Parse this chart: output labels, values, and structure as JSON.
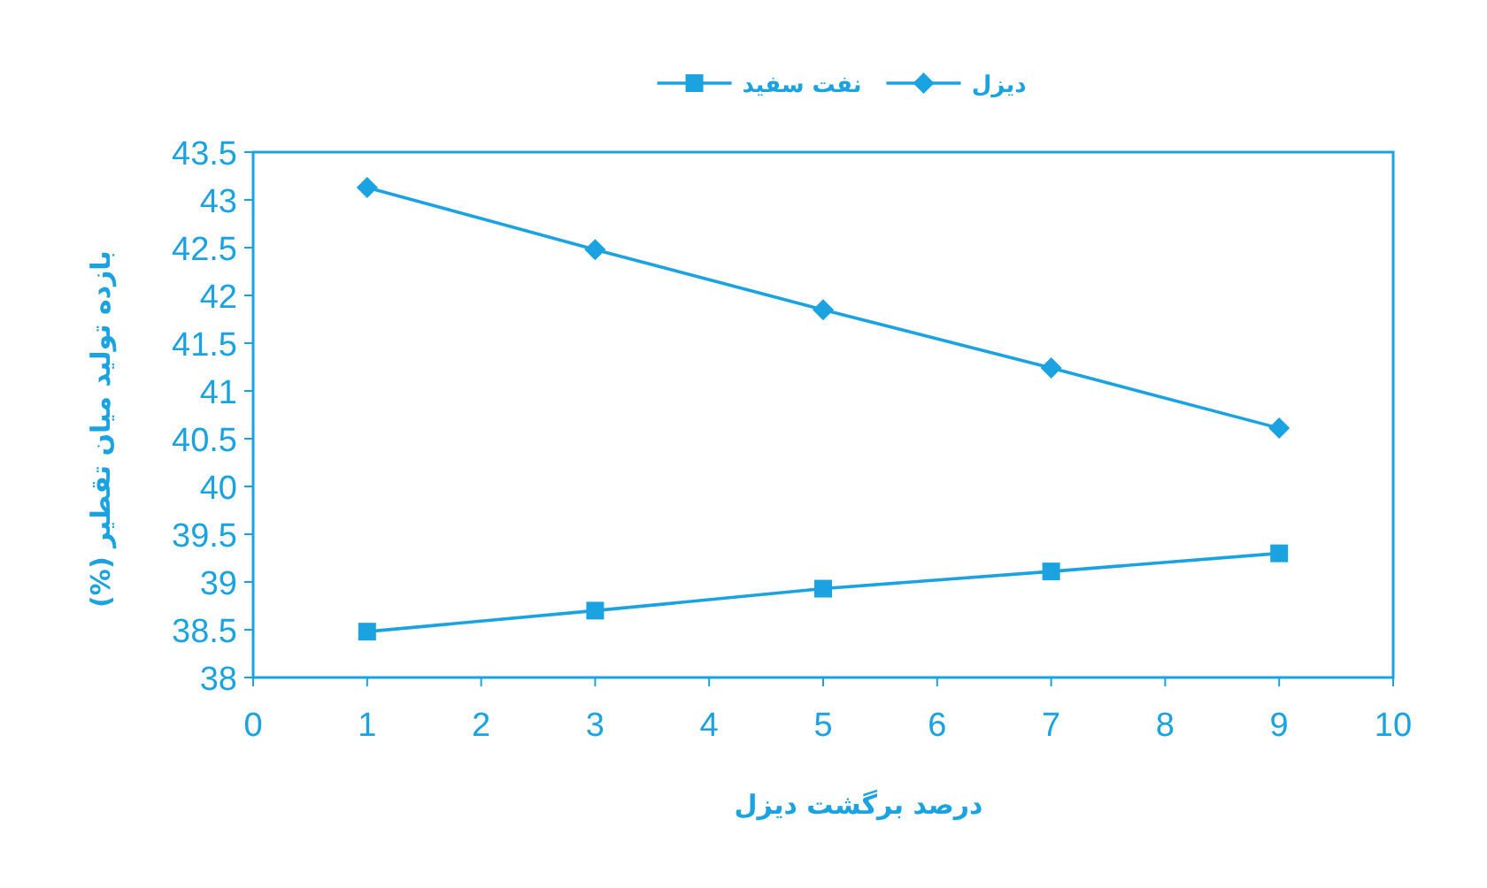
{
  "chart_data": {
    "type": "line",
    "xlabel": "درصد برگشت دیزل",
    "ylabel": "بازده تولید میان تقطیر (%)",
    "x": [
      1,
      3,
      5,
      7,
      9
    ],
    "series": [
      {
        "name": "دیزل",
        "color": "#1aa3e0",
        "marker": "diamond",
        "values": [
          43.13,
          42.48,
          41.85,
          41.24,
          40.61
        ]
      },
      {
        "name": "نفت سفید",
        "color": "#1aa3e0",
        "marker": "square",
        "values": [
          38.48,
          38.7,
          38.93,
          39.11,
          39.3
        ]
      }
    ],
    "xlim": [
      0,
      10
    ],
    "xticks": [
      0,
      1,
      2,
      3,
      4,
      5,
      6,
      7,
      8,
      9,
      10
    ],
    "ylim": [
      38,
      43.5
    ],
    "yticks": [
      38,
      38.5,
      39,
      39.5,
      40,
      40.5,
      41,
      41.5,
      42,
      42.5,
      43,
      43.5
    ],
    "grid": false,
    "legend": "top",
    "line_style": "solid"
  }
}
